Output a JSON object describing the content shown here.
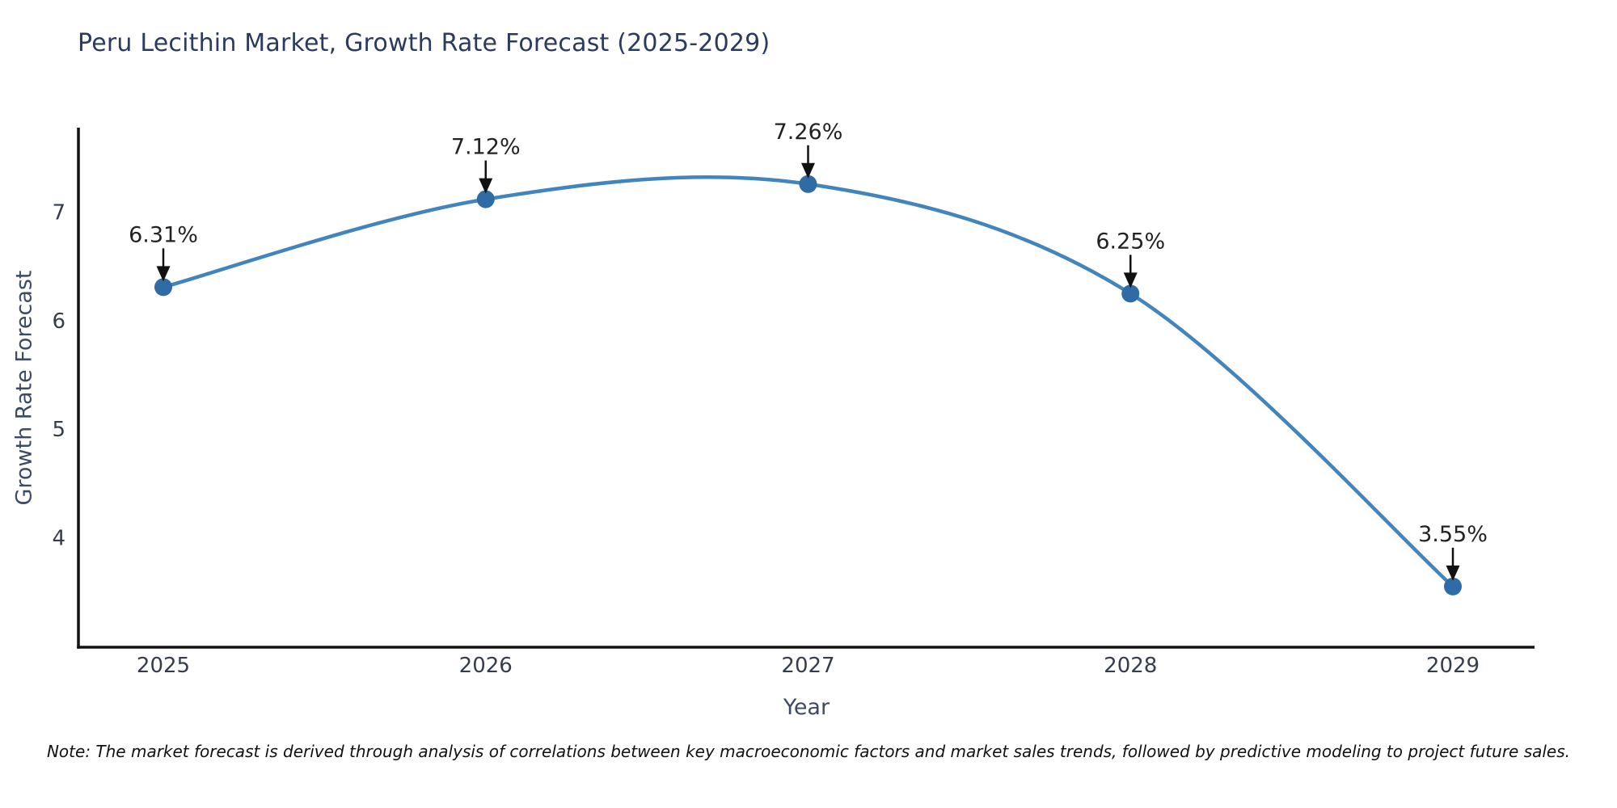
{
  "title": "Peru Lecithin Market, Growth Rate Forecast (2025-2029)",
  "note": "Note: The market forecast is derived through analysis of correlations between key macroeconomic factors and market sales trends, followed by predictive modeling to project future sales.",
  "chart_data": {
    "type": "line",
    "title": "Peru Lecithin Market, Growth Rate Forecast (2025-2029)",
    "xlabel": "Year",
    "ylabel": "Growth Rate Forecast",
    "categories": [
      "2025",
      "2026",
      "2027",
      "2028",
      "2029"
    ],
    "values": [
      6.31,
      7.12,
      7.26,
      6.25,
      3.55
    ],
    "point_labels": [
      "6.31%",
      "7.12%",
      "7.26%",
      "6.25%",
      "3.55%"
    ],
    "yticks": [
      4,
      5,
      6,
      7
    ],
    "ylim": [
      2.99,
      7.78
    ],
    "line_shape": "spline",
    "grid": false,
    "legend": "none",
    "colors": {
      "line": "#4285bd",
      "marker": "#2f6ba5",
      "axis": "#111111",
      "annotation_text": "#222222",
      "annotation_arrow": "#111111",
      "tick_label": "#363d4a",
      "title": "#2b3a5e",
      "axis_label": "#3c4a63"
    }
  }
}
